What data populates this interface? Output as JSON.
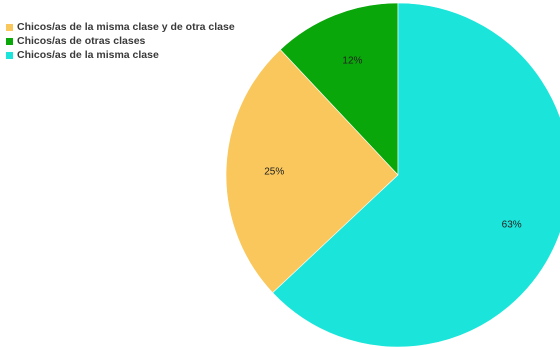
{
  "chart_data": {
    "type": "pie",
    "categories": [
      "Chicos/as de la misma clase y de otra clase",
      "Chicos/as de otras clases",
      "Chicos/as de la misma clase"
    ],
    "values": [
      25,
      12,
      63
    ],
    "labels": [
      "25%",
      "12%",
      "63%"
    ],
    "colors": [
      "#f9c75c",
      "#0aa70a",
      "#1be5da"
    ],
    "title": "",
    "legend_position": "top-left"
  }
}
